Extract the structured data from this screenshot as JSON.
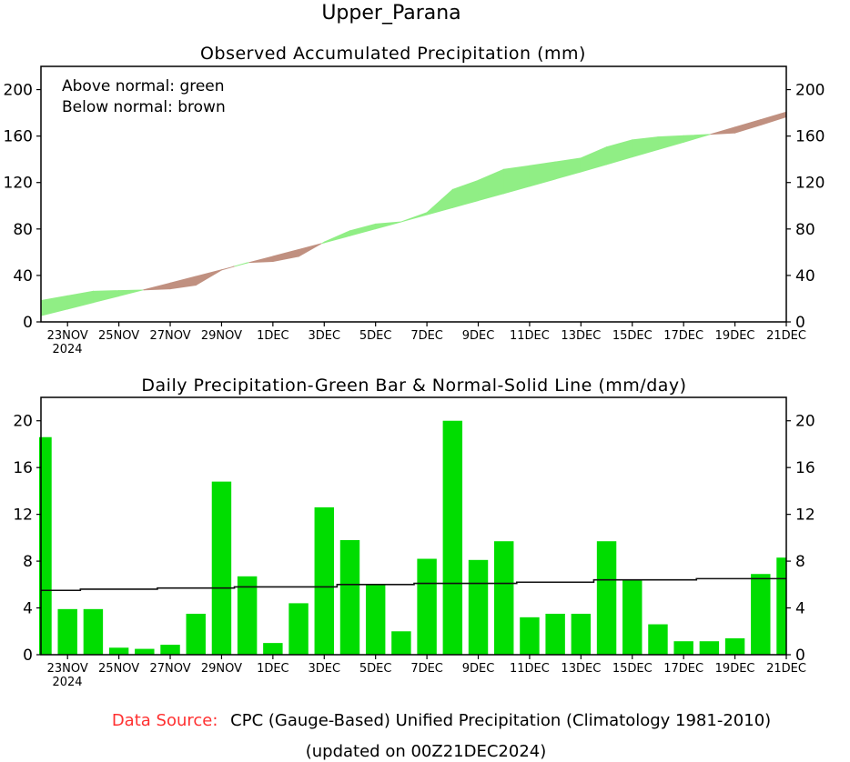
{
  "title": "Upper_Parana",
  "footer": {
    "source_label": "Data Source:",
    "source_text": "CPC (Gauge-Based) Unified Precipitation (Climatology 1981-2010)",
    "updated": "(updated on 00Z21DEC2024)"
  },
  "colors": {
    "above": "#90ee85",
    "below": "#c09080",
    "bar": "#00dd00",
    "source_label": "#ff3030"
  },
  "chart_data": [
    {
      "type": "area",
      "title": "Observed Accumulated Precipitation (mm)",
      "legend": [
        "Above normal: green",
        "Below normal: brown"
      ],
      "legend_placement": "top-left",
      "ylim": [
        0,
        220
      ],
      "yticks": [
        "0",
        "40",
        "80",
        "120",
        "160",
        "200"
      ],
      "ytick_values": [
        0,
        40,
        80,
        120,
        160,
        200
      ],
      "xtick_labels": [
        "23NOV",
        "25NOV",
        "27NOV",
        "29NOV",
        "1DEC",
        "3DEC",
        "5DEC",
        "7DEC",
        "9DEC",
        "11DEC",
        "13DEC",
        "15DEC",
        "17DEC",
        "19DEC",
        "21DEC"
      ],
      "xtick_day_index": [
        1,
        3,
        5,
        7,
        9,
        11,
        13,
        15,
        17,
        19,
        21,
        23,
        25,
        27,
        29
      ],
      "year_label": "2024",
      "x": [
        "22NOV",
        "23NOV",
        "24NOV",
        "25NOV",
        "26NOV",
        "27NOV",
        "28NOV",
        "29NOV",
        "30NOV",
        "1DEC",
        "2DEC",
        "3DEC",
        "4DEC",
        "5DEC",
        "6DEC",
        "7DEC",
        "8DEC",
        "9DEC",
        "10DEC",
        "11DEC",
        "12DEC",
        "13DEC",
        "14DEC",
        "15DEC",
        "16DEC",
        "17DEC",
        "18DEC",
        "19DEC",
        "20DEC",
        "21DEC"
      ],
      "series": [
        {
          "name": "Observed accumulated",
          "values": [
            18.6,
            22.5,
            26.4,
            27.0,
            27.5,
            28.4,
            31.6,
            44.6,
            51.0,
            52.0,
            56.3,
            68.8,
            78.5,
            84.3,
            86.2,
            94.2,
            114.0,
            121.9,
            131.4,
            134.5,
            137.8,
            141.1,
            150.6,
            156.8,
            159.3,
            160.4,
            161.4,
            162.7,
            169.4,
            176.5
          ]
        },
        {
          "name": "Normal accumulated",
          "values": [
            5.5,
            11.0,
            16.6,
            22.2,
            27.8,
            33.5,
            39.2,
            44.9,
            50.7,
            56.5,
            62.3,
            68.1,
            74.1,
            80.1,
            86.1,
            92.2,
            98.3,
            104.4,
            110.5,
            116.7,
            122.9,
            129.1,
            135.5,
            141.9,
            148.3,
            154.7,
            161.2,
            167.7,
            174.2,
            180.7
          ]
        }
      ]
    },
    {
      "type": "bar",
      "title": "Daily Precipitation-Green Bar & Normal-Solid Line (mm/day)",
      "ylim": [
        0,
        22
      ],
      "yticks": [
        "0",
        "4",
        "8",
        "12",
        "16",
        "20"
      ],
      "ytick_values": [
        0,
        4,
        8,
        12,
        16,
        20
      ],
      "xtick_labels": [
        "23NOV",
        "25NOV",
        "27NOV",
        "29NOV",
        "1DEC",
        "3DEC",
        "5DEC",
        "7DEC",
        "9DEC",
        "11DEC",
        "13DEC",
        "15DEC",
        "17DEC",
        "19DEC",
        "21DEC"
      ],
      "xtick_day_index": [
        1,
        3,
        5,
        7,
        9,
        11,
        13,
        15,
        17,
        19,
        21,
        23,
        25,
        27,
        29
      ],
      "year_label": "2024",
      "x": [
        "22NOV",
        "23NOV",
        "24NOV",
        "25NOV",
        "26NOV",
        "27NOV",
        "28NOV",
        "29NOV",
        "30NOV",
        "1DEC",
        "2DEC",
        "3DEC",
        "4DEC",
        "5DEC",
        "6DEC",
        "7DEC",
        "8DEC",
        "9DEC",
        "10DEC",
        "11DEC",
        "12DEC",
        "13DEC",
        "14DEC",
        "15DEC",
        "16DEC",
        "17DEC",
        "18DEC",
        "19DEC",
        "20DEC",
        "21DEC"
      ],
      "series": [
        {
          "name": "Daily precipitation",
          "values": [
            18.6,
            3.9,
            3.9,
            0.6,
            0.5,
            0.85,
            3.5,
            14.8,
            6.7,
            1.0,
            4.4,
            12.6,
            9.8,
            6.0,
            2.0,
            8.2,
            20.0,
            8.1,
            9.7,
            3.2,
            3.5,
            3.5,
            9.7,
            6.4,
            2.6,
            1.15,
            1.15,
            1.4,
            6.9,
            8.3
          ]
        },
        {
          "name": "Normal",
          "values": [
            5.5,
            5.5,
            5.6,
            5.6,
            5.6,
            5.7,
            5.7,
            5.7,
            5.8,
            5.8,
            5.8,
            5.8,
            6.0,
            6.0,
            6.0,
            6.1,
            6.1,
            6.1,
            6.1,
            6.2,
            6.2,
            6.2,
            6.4,
            6.4,
            6.4,
            6.4,
            6.5,
            6.5,
            6.5,
            6.5
          ]
        }
      ]
    }
  ]
}
